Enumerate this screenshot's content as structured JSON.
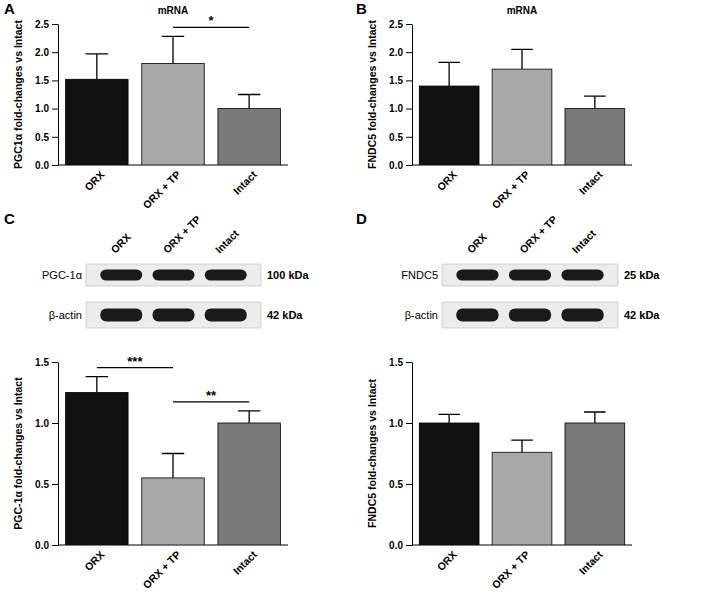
{
  "chart_data": [
    {
      "type": "bar",
      "panel": "A",
      "title": "mRNA",
      "y_label": "PGC1α fold-changes vs Intact",
      "categories": [
        "ORX",
        "ORX + TP",
        "Intact"
      ],
      "values": [
        1.52,
        1.8,
        1.0
      ],
      "errors": [
        0.45,
        0.48,
        0.25
      ],
      "colors": [
        "#111111",
        "#a9a9a9",
        "#7a7a7a"
      ],
      "ylim": [
        0,
        2.5
      ],
      "yticks": [
        {
          "value": 0,
          "label": "0.0"
        },
        {
          "value": 0.5,
          "label": "0.5"
        },
        {
          "value": 1,
          "label": "1.0"
        },
        {
          "value": 1.5,
          "label": "1.5"
        },
        {
          "value": 2,
          "label": "2.0"
        },
        {
          "value": 2.5,
          "label": "2.5"
        }
      ],
      "annotations": [
        {
          "text": "*",
          "between": [
            "ORX + TP",
            "Intact"
          ]
        }
      ]
    },
    {
      "type": "bar",
      "panel": "B",
      "title": "mRNA",
      "y_label": "FNDC5 fold-changes vs Intact",
      "categories": [
        "ORX",
        "ORX + TP",
        "Intact"
      ],
      "values": [
        1.4,
        1.7,
        1.0
      ],
      "errors": [
        0.42,
        0.35,
        0.22
      ],
      "colors": [
        "#111111",
        "#a9a9a9",
        "#7a7a7a"
      ],
      "ylim": [
        0,
        2.5
      ],
      "yticks": [
        {
          "value": 0,
          "label": "0.0"
        },
        {
          "value": 0.5,
          "label": "0.5"
        },
        {
          "value": 1,
          "label": "1.0"
        },
        {
          "value": 1.5,
          "label": "1.5"
        },
        {
          "value": 2,
          "label": "2.0"
        },
        {
          "value": 2.5,
          "label": "2.5"
        }
      ]
    },
    {
      "type": "bar",
      "panel": "C",
      "y_label": "PGC-1α fold-changes vs Intact",
      "blot": {
        "lanes": [
          "ORX",
          "ORX + TP",
          "Intact"
        ],
        "rows": [
          {
            "label": "PGC-1α",
            "size": "100 kDa"
          },
          {
            "label": "β-actin",
            "size": "42 kDa"
          }
        ]
      },
      "categories": [
        "ORX",
        "ORX + TP",
        "Intact"
      ],
      "values": [
        1.25,
        0.55,
        1.0
      ],
      "errors": [
        0.13,
        0.2,
        0.1
      ],
      "colors": [
        "#111111",
        "#a9a9a9",
        "#7a7a7a"
      ],
      "ylim": [
        0,
        1.5
      ],
      "yticks": [
        {
          "value": 0,
          "label": "0.0"
        },
        {
          "value": 0.5,
          "label": "0.5"
        },
        {
          "value": 1,
          "label": "1.0"
        },
        {
          "value": 1.5,
          "label": "1.5"
        }
      ],
      "annotations": [
        {
          "text": "***",
          "between": [
            "ORX",
            "ORX + TP"
          ]
        },
        {
          "text": "**",
          "between": [
            "ORX + TP",
            "Intact"
          ]
        }
      ]
    },
    {
      "type": "bar",
      "panel": "D",
      "y_label": "FNDC5 fold-changes vs Intact",
      "blot": {
        "lanes": [
          "ORX",
          "ORX + TP",
          "Intact"
        ],
        "rows": [
          {
            "label": "FNDC5",
            "size": "25 kDa"
          },
          {
            "label": "β-actin",
            "size": "42 kDa"
          }
        ]
      },
      "categories": [
        "ORX",
        "ORX + TP",
        "Intact"
      ],
      "values": [
        1.0,
        0.76,
        1.0
      ],
      "errors": [
        0.07,
        0.1,
        0.09
      ],
      "colors": [
        "#111111",
        "#a9a9a9",
        "#7a7a7a"
      ],
      "ylim": [
        0,
        1.5
      ],
      "yticks": [
        {
          "value": 0,
          "label": "0.0"
        },
        {
          "value": 0.5,
          "label": "0.5"
        },
        {
          "value": 1,
          "label": "1.0"
        },
        {
          "value": 1.5,
          "label": "1.5"
        }
      ]
    }
  ]
}
